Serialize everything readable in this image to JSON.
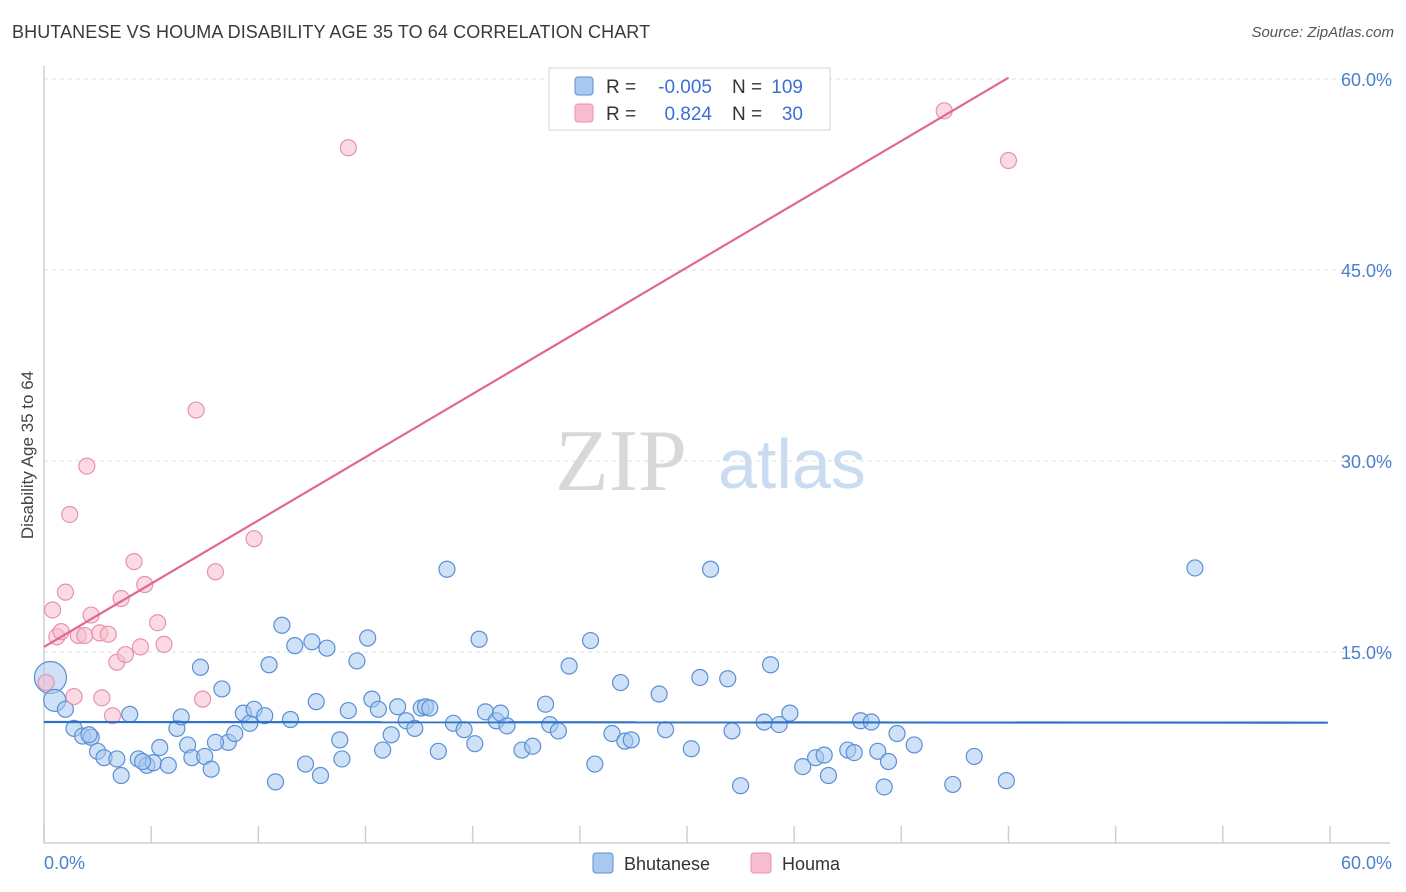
{
  "title": "BHUTANESE VS HOUMA DISABILITY AGE 35 TO 64 CORRELATION CHART",
  "source": "Source: ZipAtlas.com",
  "watermark": {
    "zip": "ZIP",
    "atlas": "atlas"
  },
  "colors": {
    "blue_fill": "#a8c8ef",
    "blue_stroke": "#5b8fd6",
    "blue_line": "#2f72c9",
    "pink_fill": "#f7bccd",
    "pink_stroke": "#e792ab",
    "pink_line": "#e0688f",
    "tick_text": "#4a7fcf",
    "grid": "#dddddd"
  },
  "legend": {
    "rows": [
      {
        "r_label": "R = ",
        "r_value": "-0.005",
        "n_label": "N = ",
        "n_value": "109",
        "series": "Bhutanese"
      },
      {
        "r_label": "R = ",
        "r_value": "0.824",
        "n_label": "N = ",
        "n_value": "30",
        "series": "Houma"
      }
    ]
  },
  "chart_data": {
    "type": "scatter",
    "title": "BHUTANESE VS HOUMA DISABILITY AGE 35 TO 64 CORRELATION CHART",
    "xlabel": "",
    "ylabel": "Disability Age 35 to 64",
    "xlim": [
      0,
      60
    ],
    "ylim": [
      0,
      60
    ],
    "x_tick_labels": [
      "0.0%",
      "60.0%"
    ],
    "y_tick_values": [
      15,
      30,
      45,
      60
    ],
    "y_tick_labels": [
      "15.0%",
      "30.0%",
      "45.0%",
      "60.0%"
    ],
    "legend_position": "top-center",
    "series": [
      {
        "name": "Bhutanese",
        "color": "#a8c8ef",
        "trend": {
          "x": [
            0,
            59.9
          ],
          "y": [
            9.5,
            9.45
          ]
        },
        "points": [
          {
            "x": 0.3,
            "y": 13.0,
            "r": 16
          },
          {
            "x": 0.5,
            "y": 11.2,
            "r": 11
          },
          {
            "x": 1.0,
            "y": 10.5
          },
          {
            "x": 1.4,
            "y": 9.0
          },
          {
            "x": 1.8,
            "y": 8.4
          },
          {
            "x": 2.2,
            "y": 8.3
          },
          {
            "x": 2.5,
            "y": 7.2
          },
          {
            "x": 2.8,
            "y": 6.7
          },
          {
            "x": 3.4,
            "y": 6.6
          },
          {
            "x": 3.6,
            "y": 5.3
          },
          {
            "x": 4.0,
            "y": 10.1
          },
          {
            "x": 4.4,
            "y": 6.6
          },
          {
            "x": 4.8,
            "y": 6.1
          },
          {
            "x": 5.1,
            "y": 6.3
          },
          {
            "x": 5.4,
            "y": 7.5
          },
          {
            "x": 5.8,
            "y": 6.1
          },
          {
            "x": 6.2,
            "y": 9.0
          },
          {
            "x": 6.4,
            "y": 9.9
          },
          {
            "x": 6.7,
            "y": 7.7
          },
          {
            "x": 6.9,
            "y": 6.7
          },
          {
            "x": 7.3,
            "y": 13.8
          },
          {
            "x": 7.5,
            "y": 6.8
          },
          {
            "x": 7.8,
            "y": 5.8
          },
          {
            "x": 8.3,
            "y": 12.1
          },
          {
            "x": 8.6,
            "y": 7.9
          },
          {
            "x": 8.9,
            "y": 8.6
          },
          {
            "x": 9.3,
            "y": 10.2
          },
          {
            "x": 9.6,
            "y": 9.4
          },
          {
            "x": 9.8,
            "y": 10.5
          },
          {
            "x": 10.3,
            "y": 10.0
          },
          {
            "x": 10.5,
            "y": 14.0
          },
          {
            "x": 10.8,
            "y": 4.8
          },
          {
            "x": 11.1,
            "y": 17.1
          },
          {
            "x": 11.5,
            "y": 9.7
          },
          {
            "x": 11.7,
            "y": 15.5
          },
          {
            "x": 12.2,
            "y": 6.2
          },
          {
            "x": 12.5,
            "y": 15.8
          },
          {
            "x": 12.7,
            "y": 11.1
          },
          {
            "x": 12.9,
            "y": 5.3
          },
          {
            "x": 13.2,
            "y": 15.3
          },
          {
            "x": 13.8,
            "y": 8.1
          },
          {
            "x": 13.9,
            "y": 6.6
          },
          {
            "x": 14.2,
            "y": 10.4
          },
          {
            "x": 14.6,
            "y": 14.3
          },
          {
            "x": 15.1,
            "y": 16.1
          },
          {
            "x": 15.3,
            "y": 11.3
          },
          {
            "x": 15.6,
            "y": 10.5
          },
          {
            "x": 15.8,
            "y": 7.3
          },
          {
            "x": 16.2,
            "y": 8.5
          },
          {
            "x": 16.5,
            "y": 10.7
          },
          {
            "x": 16.9,
            "y": 9.6
          },
          {
            "x": 17.3,
            "y": 9.0
          },
          {
            "x": 17.6,
            "y": 10.6
          },
          {
            "x": 17.8,
            "y": 10.7
          },
          {
            "x": 18.4,
            "y": 7.2
          },
          {
            "x": 18.8,
            "y": 21.5
          },
          {
            "x": 19.1,
            "y": 9.4
          },
          {
            "x": 19.6,
            "y": 8.9
          },
          {
            "x": 20.1,
            "y": 7.8
          },
          {
            "x": 20.3,
            "y": 16.0
          },
          {
            "x": 20.6,
            "y": 10.3
          },
          {
            "x": 21.1,
            "y": 9.6
          },
          {
            "x": 21.3,
            "y": 10.2
          },
          {
            "x": 21.6,
            "y": 9.2
          },
          {
            "x": 22.3,
            "y": 7.3
          },
          {
            "x": 22.8,
            "y": 7.6
          },
          {
            "x": 23.4,
            "y": 10.9
          },
          {
            "x": 23.6,
            "y": 9.3
          },
          {
            "x": 24.0,
            "y": 8.8
          },
          {
            "x": 24.5,
            "y": 13.9
          },
          {
            "x": 25.5,
            "y": 15.9
          },
          {
            "x": 25.7,
            "y": 6.2
          },
          {
            "x": 26.5,
            "y": 8.6
          },
          {
            "x": 26.9,
            "y": 12.6
          },
          {
            "x": 27.1,
            "y": 8.0
          },
          {
            "x": 27.4,
            "y": 8.1
          },
          {
            "x": 28.7,
            "y": 11.7
          },
          {
            "x": 29.0,
            "y": 8.9
          },
          {
            "x": 30.2,
            "y": 7.4
          },
          {
            "x": 30.6,
            "y": 13.0
          },
          {
            "x": 31.1,
            "y": 21.5
          },
          {
            "x": 31.9,
            "y": 12.9
          },
          {
            "x": 32.1,
            "y": 8.8
          },
          {
            "x": 32.5,
            "y": 4.5
          },
          {
            "x": 33.6,
            "y": 9.5
          },
          {
            "x": 33.9,
            "y": 14.0
          },
          {
            "x": 34.3,
            "y": 9.3
          },
          {
            "x": 34.8,
            "y": 10.2
          },
          {
            "x": 35.4,
            "y": 6.0
          },
          {
            "x": 36.0,
            "y": 6.7
          },
          {
            "x": 36.4,
            "y": 6.9
          },
          {
            "x": 36.6,
            "y": 5.3
          },
          {
            "x": 37.5,
            "y": 7.3
          },
          {
            "x": 37.8,
            "y": 7.1
          },
          {
            "x": 38.1,
            "y": 9.6
          },
          {
            "x": 38.6,
            "y": 9.5
          },
          {
            "x": 38.9,
            "y": 7.2
          },
          {
            "x": 39.2,
            "y": 4.4
          },
          {
            "x": 39.4,
            "y": 6.4
          },
          {
            "x": 39.8,
            "y": 8.6
          },
          {
            "x": 40.6,
            "y": 7.7
          },
          {
            "x": 42.4,
            "y": 4.6
          },
          {
            "x": 43.4,
            "y": 6.8
          },
          {
            "x": 44.9,
            "y": 4.9
          },
          {
            "x": 53.7,
            "y": 21.6
          },
          {
            "x": 2.1,
            "y": 8.5
          },
          {
            "x": 8.0,
            "y": 7.9
          },
          {
            "x": 4.6,
            "y": 6.4
          },
          {
            "x": 18.0,
            "y": 10.6
          }
        ]
      },
      {
        "name": "Houma",
        "color": "#f7bccd",
        "trend": {
          "x": [
            0,
            45
          ],
          "y": [
            15.4,
            60.1
          ]
        },
        "points": [
          {
            "x": 0.1,
            "y": 12.6
          },
          {
            "x": 0.4,
            "y": 18.3
          },
          {
            "x": 0.6,
            "y": 16.2
          },
          {
            "x": 0.8,
            "y": 16.6
          },
          {
            "x": 1.0,
            "y": 19.7
          },
          {
            "x": 1.2,
            "y": 25.8
          },
          {
            "x": 1.4,
            "y": 11.5
          },
          {
            "x": 1.6,
            "y": 16.3
          },
          {
            "x": 1.9,
            "y": 16.3
          },
          {
            "x": 2.0,
            "y": 29.6
          },
          {
            "x": 2.2,
            "y": 17.9
          },
          {
            "x": 2.6,
            "y": 16.5
          },
          {
            "x": 2.7,
            "y": 11.4
          },
          {
            "x": 3.0,
            "y": 16.4
          },
          {
            "x": 3.2,
            "y": 10.0
          },
          {
            "x": 3.4,
            "y": 14.2
          },
          {
            "x": 3.6,
            "y": 19.2
          },
          {
            "x": 3.8,
            "y": 14.8
          },
          {
            "x": 4.2,
            "y": 22.1
          },
          {
            "x": 4.5,
            "y": 15.4
          },
          {
            "x": 4.7,
            "y": 20.3
          },
          {
            "x": 5.3,
            "y": 17.3
          },
          {
            "x": 5.6,
            "y": 15.6
          },
          {
            "x": 7.1,
            "y": 34.0
          },
          {
            "x": 7.4,
            "y": 11.3
          },
          {
            "x": 8.0,
            "y": 21.3
          },
          {
            "x": 9.8,
            "y": 23.9
          },
          {
            "x": 14.2,
            "y": 54.6
          },
          {
            "x": 42.0,
            "y": 57.5
          },
          {
            "x": 45.0,
            "y": 53.6
          }
        ]
      }
    ]
  }
}
